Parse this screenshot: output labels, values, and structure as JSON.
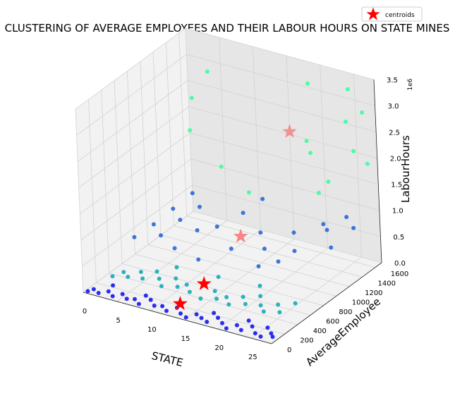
{
  "chart_data": {
    "type": "scatter",
    "projection": "3d",
    "title": "CLUSTERING OF AVERAGE EMPLOYEES AND THEIR LABOUR HOURS ON STATE MINES",
    "xlabel": "STATE",
    "ylabel": "AverageEmployee",
    "zlabel": "LabourHours",
    "z_offset_label": "1e6",
    "xlim": [
      0,
      28
    ],
    "ylim": [
      0,
      1700
    ],
    "zlim": [
      0,
      3.5
    ],
    "x_ticks": [
      "0",
      "5",
      "10",
      "15",
      "20",
      "25"
    ],
    "y_ticks": [
      "0",
      "200",
      "400",
      "600",
      "800",
      "1000",
      "1200",
      "1400",
      "1600"
    ],
    "z_ticks": [
      "0.0",
      "0.5",
      "1.0",
      "1.5",
      "2.0",
      "2.5",
      "3.0",
      "3.5"
    ],
    "grid": true,
    "legend": {
      "position": "top-right",
      "label": "centroids"
    },
    "cluster_colors": [
      "#0a0af0",
      "#0aa6b4",
      "#1f5fd6",
      "#33ff99"
    ],
    "centroid_color": "#ff0000",
    "series": [
      {
        "points": [
          [
            0.5,
            20,
            0.02
          ],
          [
            1,
            60,
            0.04
          ],
          [
            2,
            30,
            0.03
          ],
          [
            3,
            80,
            0.05
          ],
          [
            4,
            40,
            0.03
          ],
          [
            5,
            90,
            0.06
          ],
          [
            6,
            50,
            0.04
          ],
          [
            7,
            70,
            0.05
          ],
          [
            8,
            30,
            0.03
          ],
          [
            9,
            110,
            0.07
          ],
          [
            10,
            60,
            0.04
          ],
          [
            11,
            80,
            0.05
          ],
          [
            12,
            40,
            0.03
          ],
          [
            13,
            100,
            0.07
          ],
          [
            14,
            50,
            0.04
          ],
          [
            15,
            30,
            0.02
          ],
          [
            16,
            90,
            0.06
          ],
          [
            17,
            60,
            0.05
          ],
          [
            18,
            40,
            0.03
          ],
          [
            19,
            110,
            0.08
          ],
          [
            20,
            70,
            0.05
          ],
          [
            21,
            30,
            0.02
          ],
          [
            22,
            90,
            0.06
          ],
          [
            23,
            50,
            0.04
          ],
          [
            24,
            120,
            0.08
          ],
          [
            25,
            60,
            0.04
          ],
          [
            26,
            40,
            0.03
          ],
          [
            27,
            100,
            0.07
          ],
          [
            27.5,
            70,
            0.05
          ],
          [
            3,
            150,
            0.1
          ],
          [
            8,
            140,
            0.09
          ],
          [
            13,
            160,
            0.1
          ],
          [
            18,
            150,
            0.1
          ],
          [
            23,
            170,
            0.11
          ],
          [
            26,
            150,
            0.1
          ]
        ]
      },
      {
        "points": [
          [
            2,
            250,
            0.15
          ],
          [
            3,
            320,
            0.2
          ],
          [
            4,
            280,
            0.18
          ],
          [
            5,
            380,
            0.22
          ],
          [
            6,
            300,
            0.2
          ],
          [
            7,
            420,
            0.26
          ],
          [
            8,
            350,
            0.22
          ],
          [
            9,
            280,
            0.18
          ],
          [
            10,
            400,
            0.25
          ],
          [
            11,
            320,
            0.2
          ],
          [
            12,
            360,
            0.24
          ],
          [
            13,
            300,
            0.19
          ],
          [
            14,
            420,
            0.27
          ],
          [
            15,
            260,
            0.17
          ],
          [
            16,
            380,
            0.24
          ],
          [
            17,
            300,
            0.2
          ],
          [
            18,
            350,
            0.22
          ],
          [
            19,
            280,
            0.18
          ],
          [
            20,
            400,
            0.25
          ],
          [
            21,
            330,
            0.21
          ],
          [
            22,
            460,
            0.28
          ],
          [
            23,
            360,
            0.23
          ],
          [
            24,
            300,
            0.2
          ],
          [
            25,
            420,
            0.26
          ],
          [
            26,
            340,
            0.22
          ],
          [
            27,
            480,
            0.3
          ],
          [
            9,
            520,
            0.32
          ],
          [
            15,
            540,
            0.33
          ],
          [
            21,
            560,
            0.35
          ]
        ]
      },
      {
        "points": [
          [
            2,
            900,
            0.55
          ],
          [
            3,
            1100,
            0.7
          ],
          [
            4,
            800,
            0.5
          ],
          [
            5,
            1000,
            0.65
          ],
          [
            6,
            1200,
            0.75
          ],
          [
            7,
            700,
            0.45
          ],
          [
            8,
            950,
            0.6
          ],
          [
            10,
            1050,
            0.65
          ],
          [
            12,
            1250,
            0.8
          ],
          [
            14,
            850,
            0.55
          ],
          [
            16,
            1100,
            0.7
          ],
          [
            18,
            950,
            0.6
          ],
          [
            20,
            1200,
            0.75
          ],
          [
            22,
            1000,
            0.65
          ],
          [
            24,
            1300,
            0.85
          ],
          [
            26,
            1150,
            0.72
          ],
          [
            27,
            1400,
            0.9
          ],
          [
            25,
            1500,
            0.95
          ],
          [
            23,
            1350,
            0.88
          ],
          [
            19,
            750,
            0.48
          ],
          [
            11,
            650,
            0.42
          ],
          [
            4,
            1300,
            0.85
          ],
          [
            1,
            700,
            0.45
          ],
          [
            13,
            1450,
            0.92
          ],
          [
            21,
            850,
            0.55
          ]
        ]
      },
      {
        "points": [
          [
            2,
            1500,
            1.8
          ],
          [
            3,
            1450,
            2.5
          ],
          [
            4,
            1600,
            2.9
          ],
          [
            6,
            1550,
            1.2
          ],
          [
            20,
            1500,
            2.0
          ],
          [
            22,
            1400,
            1.4
          ],
          [
            24,
            1650,
            2.6
          ],
          [
            25,
            1600,
            3.3
          ],
          [
            26,
            1550,
            2.2
          ],
          [
            27,
            1650,
            1.9
          ],
          [
            23,
            1450,
            1.6
          ],
          [
            21,
            1350,
            2.4
          ],
          [
            12,
            1350,
            1.1
          ],
          [
            19,
            1600,
            3.2
          ],
          [
            26,
            1700,
            2.8
          ]
        ]
      }
    ],
    "centroids": [
      [
        13,
        150,
        0.1
      ],
      [
        14,
        420,
        0.27
      ],
      [
        14,
        1000,
        0.65
      ],
      [
        17,
        1500,
        2.3
      ]
    ]
  }
}
